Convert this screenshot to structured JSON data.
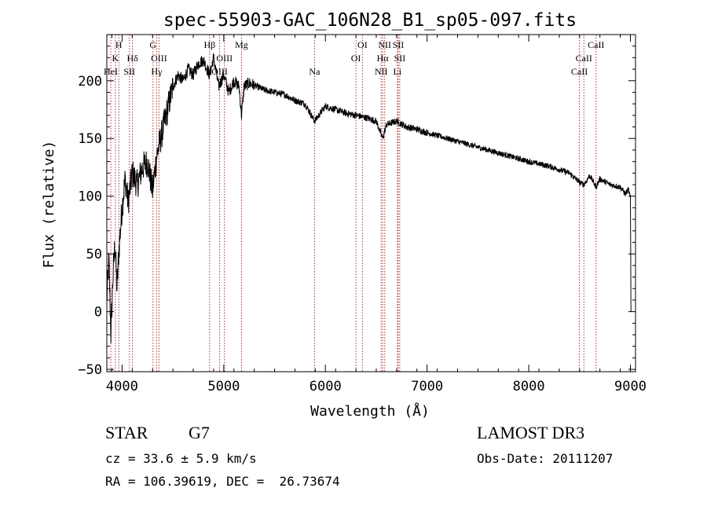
{
  "chart_data": {
    "type": "line",
    "title": "spec-55903-GAC_106N28_B1_sp05-097.fits",
    "xlabel": "Wavelength (Å)",
    "ylabel": "Flux (relative)",
    "xlim": [
      3850,
      9050
    ],
    "ylim": [
      -52,
      240
    ],
    "xticks": [
      4000,
      5000,
      6000,
      7000,
      8000,
      9000
    ],
    "yticks": [
      -50,
      0,
      50,
      100,
      150,
      200
    ],
    "grid": false,
    "series": [
      {
        "name": "spectrum",
        "x": [
          3850,
          3870,
          3890,
          3910,
          3930,
          3950,
          3970,
          4000,
          4030,
          4060,
          4100,
          4150,
          4200,
          4250,
          4300,
          4340,
          4380,
          4420,
          4460,
          4500,
          4550,
          4600,
          4650,
          4700,
          4750,
          4800,
          4861,
          4900,
          4950,
          5000,
          5050,
          5100,
          5150,
          5175,
          5200,
          5250,
          5300,
          5400,
          5500,
          5600,
          5700,
          5800,
          5893,
          6000,
          6100,
          6200,
          6300,
          6400,
          6500,
          6563,
          6600,
          6700,
          6800,
          6900,
          7000,
          7200,
          7400,
          7600,
          7800,
          8000,
          8200,
          8400,
          8500,
          8542,
          8600,
          8662,
          8700,
          8800,
          8900,
          8950,
          8980,
          9000,
          9005
        ],
        "y": [
          10,
          45,
          -20,
          30,
          60,
          20,
          55,
          90,
          115,
          95,
          120,
          110,
          125,
          130,
          105,
          135,
          150,
          165,
          180,
          195,
          205,
          200,
          210,
          205,
          215,
          218,
          205,
          220,
          195,
          205,
          190,
          200,
          195,
          170,
          195,
          198,
          196,
          192,
          190,
          188,
          183,
          180,
          165,
          178,
          175,
          172,
          170,
          168,
          165,
          150,
          162,
          165,
          160,
          158,
          155,
          150,
          145,
          140,
          135,
          130,
          126,
          120,
          112,
          110,
          118,
          108,
          115,
          110,
          108,
          102,
          106,
          98,
          0
        ]
      }
    ],
    "lines": [
      {
        "name": "HeI",
        "x": 3889,
        "label_row": 3
      },
      {
        "name": "K",
        "x": 3934,
        "label_row": 2
      },
      {
        "name": "H",
        "x": 3968,
        "label_row": 1
      },
      {
        "name": "SII",
        "x": 4072,
        "label_row": 3
      },
      {
        "name": "Hδ",
        "x": 4102,
        "label_row": 2
      },
      {
        "name": "G",
        "x": 4304,
        "label_row": 1
      },
      {
        "name": "OIII",
        "x": 4363,
        "label_row": 2
      },
      {
        "name": "Hγ",
        "x": 4340,
        "label_row": 3
      },
      {
        "name": "Hβ",
        "x": 4861,
        "label_row": 1
      },
      {
        "name": "OIII",
        "x": 4959,
        "label_row": 3
      },
      {
        "name": "OIII",
        "x": 5007,
        "label_row": 2
      },
      {
        "name": "Mg",
        "x": 5175,
        "label_row": 1
      },
      {
        "name": "Na",
        "x": 5893,
        "label_row": 3
      },
      {
        "name": "OI",
        "x": 6300,
        "label_row": 2
      },
      {
        "name": "OI",
        "x": 6364,
        "label_row": 1
      },
      {
        "name": "NII",
        "x": 6548,
        "label_row": 3
      },
      {
        "name": "Hα",
        "x": 6563,
        "label_row": 2
      },
      {
        "name": "NII",
        "x": 6583,
        "label_row": 1
      },
      {
        "name": "Li",
        "x": 6708,
        "label_row": 3
      },
      {
        "name": "SII",
        "x": 6716,
        "label_row": 1
      },
      {
        "name": "SII",
        "x": 6731,
        "label_row": 2
      },
      {
        "name": "CaII",
        "x": 8498,
        "label_row": 3
      },
      {
        "name": "CaII",
        "x": 8542,
        "label_row": 2
      },
      {
        "name": "CaII",
        "x": 8662,
        "label_row": 1
      }
    ],
    "line_color": "#b03030"
  },
  "info": {
    "object_class": "STAR",
    "subclass": "G7",
    "survey": "LAMOST DR3",
    "cz": "cz = 33.6 ± 5.9 km/s",
    "obs_date": "Obs-Date: 20111207",
    "coords": "RA = 106.39619, DEC =  26.73674"
  }
}
